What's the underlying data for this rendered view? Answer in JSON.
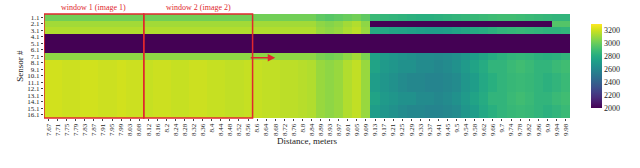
{
  "chart_data": {
    "type": "heatmap",
    "x_label": "Distance, meters",
    "y_label": "Sensor #",
    "color": "Viridis",
    "x": [
      "7.67",
      "7.71",
      "7.75",
      "7.79",
      "7.83",
      "7.87",
      "7.91",
      "7.95",
      "7.99",
      "8.03",
      "8.08",
      "8.12",
      "8.16",
      "8.2",
      "8.24",
      "8.28",
      "8.32",
      "8.36",
      "8.4",
      "8.44",
      "8.48",
      "8.52",
      "8.56",
      "8.6",
      "8.64",
      "8.68",
      "8.72",
      "8.76",
      "8.8",
      "8.84",
      "8.89",
      "8.93",
      "8.97",
      "9.01",
      "9.05",
      "9.09",
      "9.13",
      "9.17",
      "9.21",
      "9.25",
      "9.29",
      "9.33",
      "9.37",
      "9.41",
      "9.45",
      "9.5",
      "9.54",
      "9.58",
      "9.62",
      "9.66",
      "9.7",
      "9.74",
      "9.78",
      "9.82",
      "9.86",
      "9.9",
      "9.94",
      "9.98"
    ],
    "y": [
      "1.1",
      "2.1",
      "3.1",
      "4.1",
      "5.1",
      "6.1",
      "7.1",
      "8.1",
      "9.1",
      "10.1",
      "11.1",
      "12.1",
      "13.1",
      "14.1",
      "15.1",
      "16.1"
    ],
    "z": [
      [
        3020,
        3020,
        3020,
        3020,
        3020,
        3020,
        3020,
        3020,
        3020,
        3020,
        3020,
        3020,
        3020,
        3020,
        3020,
        3020,
        3020,
        3020,
        3020,
        3020,
        3020,
        3020,
        3020,
        3020,
        3020,
        3020,
        3020,
        3020,
        3020,
        3020,
        2980,
        2960,
        2980,
        3000,
        3020,
        2980,
        2880,
        2860,
        2850,
        2840,
        2830,
        2820,
        2820,
        2830,
        2840,
        2850,
        2860,
        2870,
        2880,
        2890,
        2900,
        2900,
        2890,
        2880,
        2870,
        2860,
        2850,
        2850
      ],
      [
        3120,
        3120,
        3120,
        3120,
        3120,
        3120,
        3120,
        3120,
        3120,
        3120,
        3120,
        3120,
        3120,
        3120,
        3120,
        3120,
        3120,
        3120,
        3120,
        3120,
        3120,
        3120,
        3120,
        3120,
        3120,
        3120,
        3120,
        3120,
        3120,
        3120,
        3080,
        3060,
        3080,
        3120,
        3150,
        3080,
        2000,
        2000,
        2000,
        2000,
        2000,
        2000,
        2000,
        2000,
        2000,
        2000,
        2000,
        2000,
        2000,
        2000,
        2000,
        2000,
        2000,
        2000,
        2000,
        2000,
        2950,
        2950
      ],
      [
        3150,
        3150,
        3150,
        3150,
        3150,
        3150,
        3150,
        3150,
        3150,
        3150,
        3150,
        3150,
        3150,
        3150,
        3150,
        3150,
        3150,
        3150,
        3150,
        3150,
        3150,
        3150,
        3150,
        3150,
        3150,
        3150,
        3150,
        3150,
        3150,
        3150,
        3100,
        3080,
        3100,
        3140,
        3170,
        3100,
        2800,
        2780,
        2760,
        2750,
        2740,
        2730,
        2720,
        2720,
        2730,
        2750,
        2770,
        2790,
        2810,
        2830,
        2850,
        2860,
        2870,
        2860,
        2850,
        2840,
        2840,
        2850
      ],
      [
        2000,
        2000,
        2000,
        2000,
        2000,
        2000,
        2000,
        2000,
        2000,
        2000,
        2000,
        2000,
        2000,
        2000,
        2000,
        2000,
        2000,
        2000,
        2000,
        2000,
        2000,
        2000,
        2000,
        2000,
        2000,
        2000,
        2000,
        2000,
        2000,
        2000,
        2000,
        2000,
        2000,
        2000,
        2000,
        2000,
        2000,
        2000,
        2000,
        2000,
        2000,
        2000,
        2000,
        2000,
        2000,
        2000,
        2000,
        2000,
        2000,
        2000,
        2000,
        2000,
        2000,
        2000,
        2000,
        2000,
        2000,
        2000
      ],
      [
        2000,
        2000,
        2000,
        2000,
        2000,
        2000,
        2000,
        2000,
        2000,
        2000,
        2000,
        2000,
        2000,
        2000,
        2000,
        2000,
        2000,
        2000,
        2000,
        2000,
        2000,
        2000,
        2000,
        2000,
        2000,
        2000,
        2000,
        2000,
        2000,
        2000,
        2000,
        2000,
        2000,
        2000,
        2000,
        2000,
        2000,
        2000,
        2000,
        2000,
        2000,
        2000,
        2000,
        2000,
        2000,
        2000,
        2000,
        2000,
        2000,
        2000,
        2000,
        2000,
        2000,
        2000,
        2000,
        2000,
        2000,
        2000
      ],
      [
        2000,
        2000,
        2000,
        2000,
        2000,
        2000,
        2000,
        2000,
        2000,
        2000,
        2000,
        2000,
        2000,
        2000,
        2000,
        2000,
        2000,
        2000,
        2000,
        2000,
        2000,
        2000,
        2000,
        2000,
        2000,
        2000,
        2000,
        2000,
        2000,
        2000,
        2000,
        2000,
        2000,
        2000,
        2000,
        2000,
        2000,
        2000,
        2000,
        2000,
        2000,
        2000,
        2000,
        2000,
        2000,
        2000,
        2000,
        2000,
        2000,
        2000,
        2000,
        2000,
        2000,
        2000,
        2000,
        2000,
        2000,
        2000
      ],
      [
        3080,
        3080,
        3080,
        3080,
        3080,
        3080,
        3080,
        3080,
        3080,
        3080,
        3080,
        3080,
        3080,
        3080,
        3080,
        3080,
        3080,
        3080,
        3080,
        3080,
        3080,
        3080,
        3080,
        3080,
        3080,
        3080,
        3080,
        3080,
        3080,
        3080,
        3040,
        3020,
        3040,
        3080,
        3120,
        3040,
        2740,
        2700,
        2680,
        2660,
        2640,
        2620,
        2620,
        2610,
        2620,
        2640,
        2680,
        2720,
        2760,
        2800,
        2830,
        2850,
        2860,
        2850,
        2830,
        2820,
        2830,
        2850
      ],
      [
        3210,
        3210,
        3200,
        3200,
        3210,
        3210,
        3200,
        3200,
        3210,
        3200,
        3200,
        3190,
        3200,
        3200,
        3190,
        3190,
        3200,
        3200,
        3190,
        3190,
        3180,
        3180,
        3190,
        3190,
        3180,
        3180,
        3170,
        3170,
        3160,
        3150,
        3100,
        3080,
        3100,
        3150,
        3180,
        3100,
        2750,
        2700,
        2680,
        2650,
        2650,
        2620,
        2620,
        2600,
        2620,
        2650,
        2700,
        2750,
        2800,
        2850,
        2850,
        2880,
        2900,
        2880,
        2850,
        2850,
        2880,
        2900
      ],
      [
        3210,
        3210,
        3200,
        3200,
        3210,
        3210,
        3200,
        3200,
        3210,
        3200,
        3200,
        3190,
        3200,
        3200,
        3190,
        3190,
        3200,
        3200,
        3190,
        3190,
        3180,
        3180,
        3190,
        3190,
        3180,
        3180,
        3170,
        3170,
        3160,
        3150,
        3100,
        3080,
        3100,
        3150,
        3180,
        3100,
        2750,
        2700,
        2680,
        2650,
        2650,
        2620,
        2620,
        2600,
        2620,
        2650,
        2700,
        2750,
        2800,
        2850,
        2850,
        2880,
        2900,
        2880,
        2850,
        2850,
        2880,
        2900
      ],
      [
        3210,
        3210,
        3200,
        3200,
        3210,
        3210,
        3200,
        3200,
        3210,
        3200,
        3200,
        3190,
        3200,
        3200,
        3190,
        3190,
        3200,
        3200,
        3190,
        3190,
        3180,
        3180,
        3190,
        3190,
        3180,
        3180,
        3170,
        3170,
        3160,
        3150,
        3100,
        3080,
        3100,
        3150,
        3180,
        3100,
        2720,
        2680,
        2650,
        2620,
        2600,
        2600,
        2580,
        2580,
        2600,
        2620,
        2680,
        2720,
        2780,
        2820,
        2850,
        2870,
        2880,
        2870,
        2850,
        2830,
        2850,
        2880
      ],
      [
        3210,
        3210,
        3200,
        3200,
        3210,
        3210,
        3200,
        3200,
        3210,
        3200,
        3200,
        3190,
        3200,
        3200,
        3190,
        3190,
        3200,
        3200,
        3190,
        3190,
        3180,
        3180,
        3190,
        3190,
        3180,
        3180,
        3170,
        3170,
        3160,
        3150,
        3100,
        3080,
        3100,
        3150,
        3180,
        3100,
        2720,
        2680,
        2650,
        2620,
        2600,
        2600,
        2580,
        2580,
        2600,
        2620,
        2680,
        2720,
        2780,
        2820,
        2850,
        2870,
        2880,
        2870,
        2850,
        2830,
        2850,
        2880
      ],
      [
        3210,
        3210,
        3200,
        3200,
        3210,
        3210,
        3200,
        3200,
        3210,
        3200,
        3200,
        3190,
        3200,
        3200,
        3190,
        3190,
        3200,
        3200,
        3190,
        3190,
        3180,
        3180,
        3190,
        3190,
        3180,
        3180,
        3170,
        3170,
        3160,
        3150,
        3100,
        3080,
        3100,
        3150,
        3180,
        3100,
        2720,
        2680,
        2650,
        2620,
        2600,
        2600,
        2580,
        2580,
        2600,
        2620,
        2680,
        2720,
        2780,
        2820,
        2850,
        2870,
        2880,
        2870,
        2850,
        2830,
        2850,
        2880
      ],
      [
        3210,
        3210,
        3200,
        3200,
        3210,
        3210,
        3200,
        3200,
        3210,
        3200,
        3200,
        3190,
        3200,
        3200,
        3190,
        3190,
        3200,
        3200,
        3190,
        3190,
        3180,
        3180,
        3190,
        3190,
        3180,
        3180,
        3170,
        3170,
        3160,
        3150,
        3100,
        3080,
        3100,
        3150,
        3180,
        3100,
        2750,
        2700,
        2680,
        2650,
        2650,
        2620,
        2620,
        2600,
        2620,
        2650,
        2700,
        2750,
        2800,
        2850,
        2850,
        2880,
        2900,
        2880,
        2850,
        2850,
        2880,
        2900
      ],
      [
        3210,
        3210,
        3200,
        3200,
        3210,
        3210,
        3200,
        3200,
        3210,
        3200,
        3200,
        3190,
        3200,
        3200,
        3190,
        3190,
        3200,
        3200,
        3190,
        3190,
        3180,
        3180,
        3190,
        3190,
        3180,
        3180,
        3170,
        3170,
        3160,
        3150,
        3100,
        3080,
        3100,
        3150,
        3180,
        3100,
        2750,
        2700,
        2680,
        2650,
        2650,
        2620,
        2620,
        2600,
        2620,
        2650,
        2700,
        2750,
        2800,
        2850,
        2850,
        2880,
        2900,
        2880,
        2850,
        2850,
        2880,
        2900
      ],
      [
        3210,
        3210,
        3200,
        3200,
        3210,
        3210,
        3200,
        3200,
        3210,
        3200,
        3200,
        3190,
        3200,
        3200,
        3190,
        3190,
        3200,
        3200,
        3190,
        3190,
        3180,
        3180,
        3190,
        3190,
        3180,
        3180,
        3170,
        3170,
        3160,
        3150,
        3100,
        3080,
        3100,
        3150,
        3180,
        3100,
        2720,
        2680,
        2650,
        2620,
        2600,
        2600,
        2580,
        2580,
        2600,
        2620,
        2680,
        2720,
        2780,
        2820,
        2850,
        2870,
        2880,
        2870,
        2850,
        2830,
        2850,
        2880
      ],
      [
        3210,
        3210,
        3200,
        3200,
        3210,
        3210,
        3200,
        3200,
        3210,
        3200,
        3200,
        3190,
        3200,
        3200,
        3190,
        3190,
        3200,
        3200,
        3190,
        3190,
        3180,
        3180,
        3190,
        3190,
        3180,
        3180,
        3170,
        3170,
        3160,
        3150,
        3100,
        3080,
        3100,
        3150,
        3180,
        3100,
        2720,
        2680,
        2650,
        2620,
        2600,
        2600,
        2580,
        2580,
        2600,
        2620,
        2680,
        2720,
        2780,
        2820,
        2850,
        2870,
        2880,
        2870,
        2850,
        2830,
        2850,
        2880
      ]
    ],
    "colorbar": {
      "range": [
        2000,
        3300
      ],
      "ticks": [
        2000,
        2200,
        2400,
        2600,
        2800,
        3000,
        3200
      ]
    },
    "annotations": [
      {
        "text": "window 1 (image 1)",
        "start": "7.67",
        "end": "8.08"
      },
      {
        "text": "window 2 (image 2)",
        "start": "8.12",
        "end": "8.56"
      }
    ]
  }
}
